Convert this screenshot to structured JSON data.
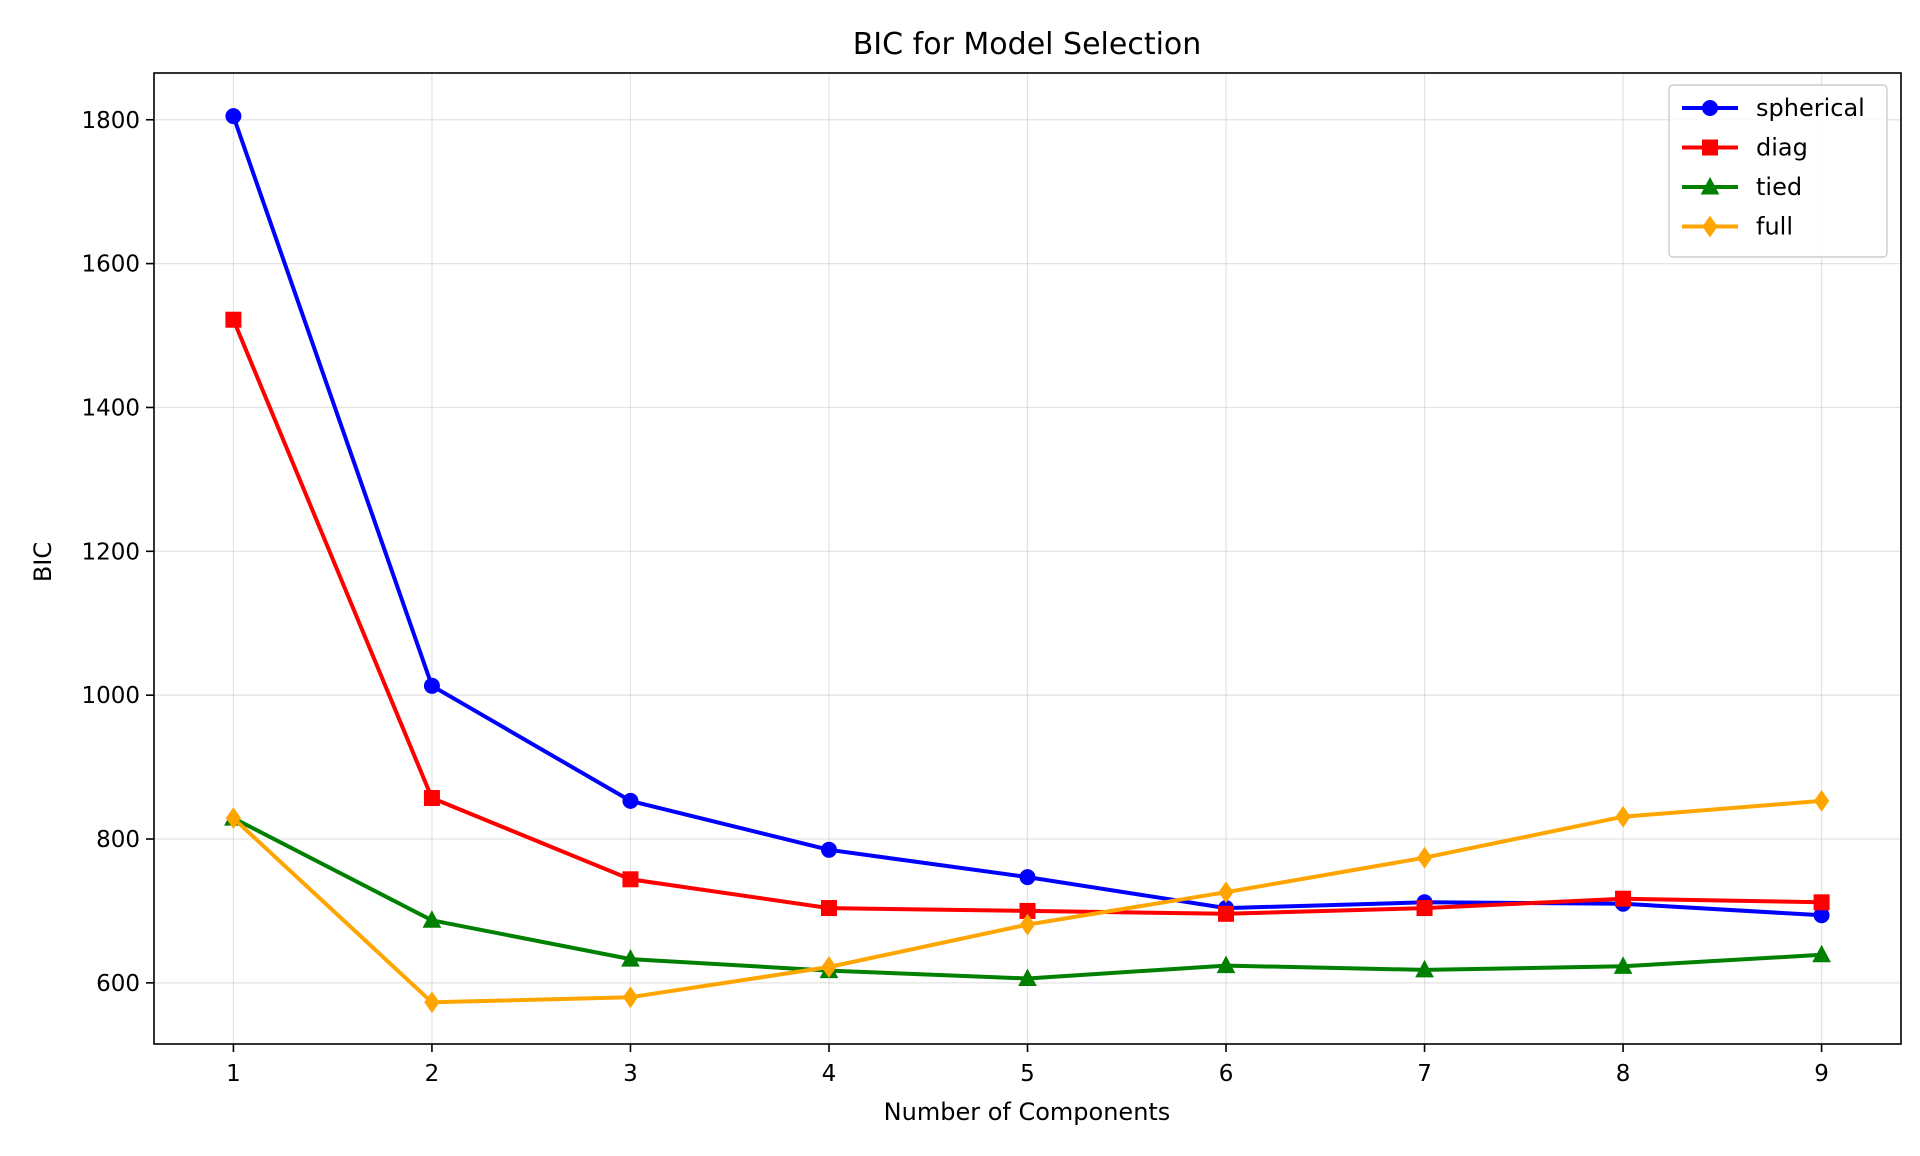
{
  "chart_data": {
    "type": "line",
    "title": "BIC for Model Selection",
    "xlabel": "Number of Components",
    "ylabel": "BIC",
    "x": [
      1,
      2,
      3,
      4,
      5,
      6,
      7,
      8,
      9
    ],
    "xticks": [
      "1",
      "2",
      "3",
      "4",
      "5",
      "6",
      "7",
      "8",
      "9"
    ],
    "yticks": [
      "600",
      "800",
      "1000",
      "1200",
      "1400",
      "1600",
      "1800"
    ],
    "xlim": [
      0.6,
      9.4
    ],
    "ylim": [
      515,
      1865
    ],
    "grid": true,
    "legend_position": "top-right",
    "series": [
      {
        "name": "spherical",
        "color": "#0000ff",
        "marker": "circle",
        "values": [
          1805,
          1013,
          853,
          785,
          747,
          704,
          712,
          710,
          694
        ]
      },
      {
        "name": "diag",
        "color": "#ff0000",
        "marker": "square",
        "values": [
          1522,
          857,
          744,
          704,
          700,
          696,
          704,
          717,
          712
        ]
      },
      {
        "name": "tied",
        "color": "#008000",
        "marker": "triangle",
        "values": [
          829,
          687,
          633,
          617,
          606,
          624,
          618,
          623,
          639
        ]
      },
      {
        "name": "full",
        "color": "#ffa500",
        "marker": "diamond",
        "values": [
          829,
          573,
          580,
          622,
          681,
          726,
          774,
          831,
          853
        ]
      }
    ]
  }
}
